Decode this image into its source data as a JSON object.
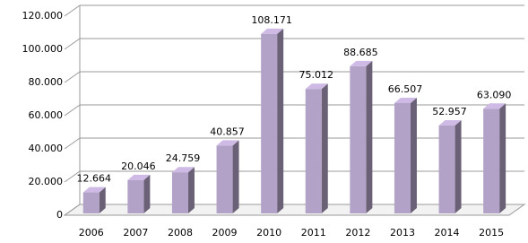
{
  "chart_data": {
    "type": "bar3d",
    "categories": [
      "2006",
      "2007",
      "2008",
      "2009",
      "2010",
      "2011",
      "2012",
      "2013",
      "2014",
      "2015"
    ],
    "values": [
      12664,
      20046,
      24759,
      40857,
      108171,
      75012,
      88685,
      66507,
      52957,
      63090
    ],
    "value_labels": [
      "12.664",
      "20.046",
      "24.759",
      "40.857",
      "108.171",
      "75.012",
      "88.685",
      "66.507",
      "52.957",
      "63.090"
    ],
    "color": "#b3a2c7",
    "ylim": [
      0,
      120000
    ],
    "yticks": [
      {
        "value": 0,
        "label": "0"
      },
      {
        "value": 20000,
        "label": "20.000"
      },
      {
        "value": 40000,
        "label": "40.000"
      },
      {
        "value": 60000,
        "label": "60.000"
      },
      {
        "value": 80000,
        "label": "80.000"
      },
      {
        "value": 100000,
        "label": "100.000"
      },
      {
        "value": 120000,
        "label": "120.000"
      }
    ],
    "grid": true
  }
}
